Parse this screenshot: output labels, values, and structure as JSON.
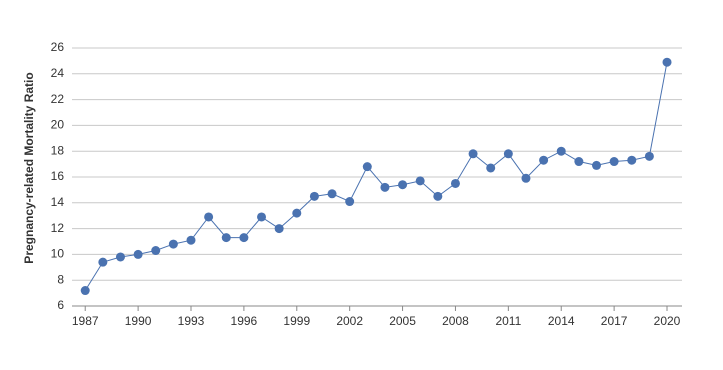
{
  "chart_data": {
    "type": "line",
    "y_label": "Pregnancy-related Mortality Ratio",
    "x": [
      1987,
      1988,
      1989,
      1990,
      1991,
      1992,
      1993,
      1994,
      1995,
      1996,
      1997,
      1998,
      1999,
      2000,
      2001,
      2002,
      2003,
      2004,
      2005,
      2006,
      2007,
      2008,
      2009,
      2010,
      2011,
      2012,
      2013,
      2014,
      2015,
      2016,
      2017,
      2018,
      2019,
      2020
    ],
    "series": [
      {
        "color": "#4a72b0",
        "values": [
          7.2,
          9.4,
          9.8,
          10.0,
          10.3,
          10.8,
          11.1,
          12.9,
          11.3,
          11.3,
          12.9,
          12.0,
          13.2,
          14.5,
          14.7,
          14.1,
          16.8,
          15.2,
          15.4,
          15.7,
          14.5,
          15.5,
          17.8,
          16.7,
          17.8,
          15.9,
          17.3,
          18.0,
          17.2,
          16.9,
          17.2,
          17.3,
          17.6,
          24.9
        ]
      }
    ],
    "xlim": [
      1986.25,
      2020.85
    ],
    "xticks": [
      1987,
      1990,
      1993,
      1996,
      1999,
      2002,
      2005,
      2008,
      2011,
      2014,
      2017,
      2020
    ],
    "ylim": [
      6,
      26
    ],
    "yticks": [
      6,
      8,
      10,
      12,
      14,
      16,
      18,
      20,
      22,
      24,
      26
    ],
    "grid": true
  }
}
